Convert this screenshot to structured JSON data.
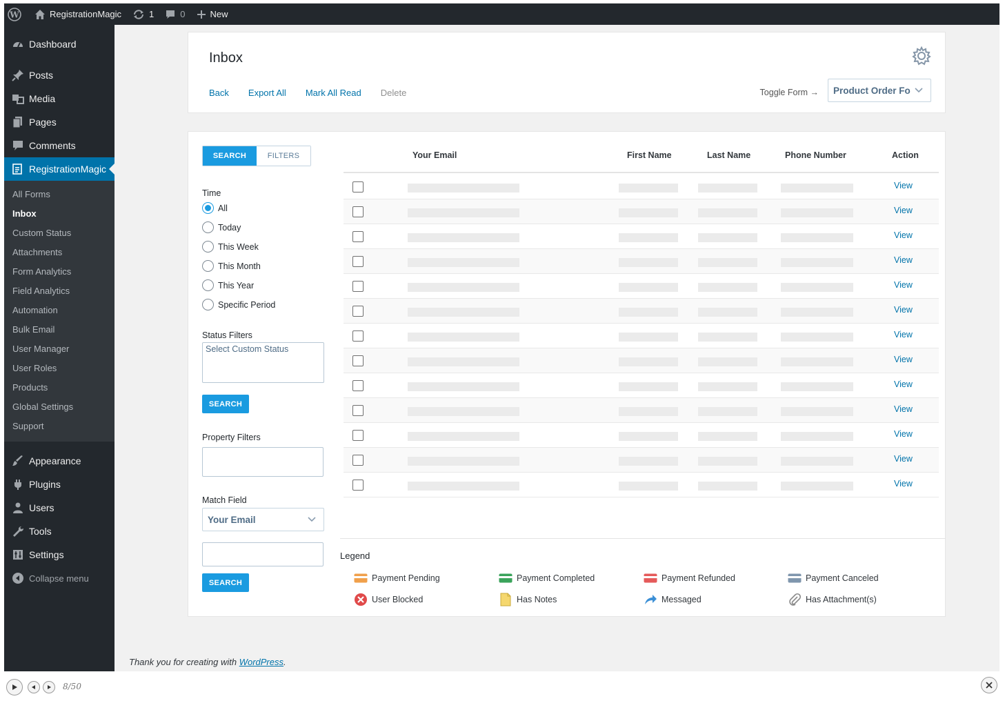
{
  "adminbar": {
    "site_name": "RegistrationMagic",
    "updates_count": "1",
    "comments_count": "0",
    "new_label": "New"
  },
  "sidebar": {
    "top_items": [
      {
        "label": "Dashboard",
        "icon": "dashboard-icon"
      },
      {
        "label": "Posts",
        "icon": "pin-icon"
      },
      {
        "label": "Media",
        "icon": "media-icon"
      },
      {
        "label": "Pages",
        "icon": "pages-icon"
      },
      {
        "label": "Comments",
        "icon": "comment-icon"
      },
      {
        "label": "RegistrationMagic",
        "icon": "form-icon"
      }
    ],
    "submenu": [
      "All Forms",
      "Inbox",
      "Custom Status",
      "Attachments",
      "Form Analytics",
      "Field Analytics",
      "Automation",
      "Bulk Email",
      "User Manager",
      "User Roles",
      "Products",
      "Global Settings",
      "Support"
    ],
    "bottom_items": [
      {
        "label": "Appearance",
        "icon": "brush-icon"
      },
      {
        "label": "Plugins",
        "icon": "plugin-icon"
      },
      {
        "label": "Users",
        "icon": "user-icon"
      },
      {
        "label": "Tools",
        "icon": "wrench-icon"
      },
      {
        "label": "Settings",
        "icon": "settings-icon"
      }
    ],
    "collapse_label": "Collapse menu"
  },
  "header": {
    "title": "Inbox",
    "actions": {
      "back": "Back",
      "export_all": "Export All",
      "mark_all_read": "Mark All Read",
      "delete": "Delete"
    },
    "toggle_form": "Toggle Form →",
    "form_selected": "Product Order Fo"
  },
  "filters": {
    "tab_search": "SEARCH",
    "tab_filters": "FILTERS",
    "time_label": "Time",
    "time_options": [
      "All",
      "Today",
      "This Week",
      "This Month",
      "This Year",
      "Specific Period"
    ],
    "time_selected": "All",
    "status_label": "Status Filters",
    "status_placeholder": "Select Custom Status",
    "search_button": "SEARCH",
    "property_label": "Property Filters",
    "match_label": "Match Field",
    "match_selected": "Your Email"
  },
  "table": {
    "columns": [
      "Your Email",
      "First Name",
      "Last Name",
      "Phone Number",
      "Action"
    ],
    "row_action": "View",
    "row_count": 13
  },
  "legend": {
    "title": "Legend",
    "items": [
      {
        "label": "Payment Pending",
        "icon": "payment-pending-icon",
        "color": "#f0a04b"
      },
      {
        "label": "Payment Completed",
        "icon": "payment-completed-icon",
        "color": "#3aa35b"
      },
      {
        "label": "Payment Refunded",
        "icon": "payment-refunded-icon",
        "color": "#e55a5a"
      },
      {
        "label": "Payment Canceled",
        "icon": "payment-canceled-icon",
        "color": "#7f96ad"
      },
      {
        "label": "User Blocked",
        "icon": "user-blocked-icon",
        "color": "#e04a4a"
      },
      {
        "label": "Has Notes",
        "icon": "notes-icon",
        "color": "#f5d76e"
      },
      {
        "label": "Messaged",
        "icon": "messaged-icon",
        "color": "#3b8fd6"
      },
      {
        "label": "Has Attachment(s)",
        "icon": "attachment-icon",
        "color": "#8a8a8a"
      }
    ]
  },
  "footer": {
    "text": "Thank you for creating with ",
    "link": "WordPress",
    "end": "."
  },
  "player": {
    "counter": "8/50"
  },
  "colors": {
    "accent": "#0073aa",
    "button": "#1a9be0",
    "adminbar": "#23282d"
  }
}
